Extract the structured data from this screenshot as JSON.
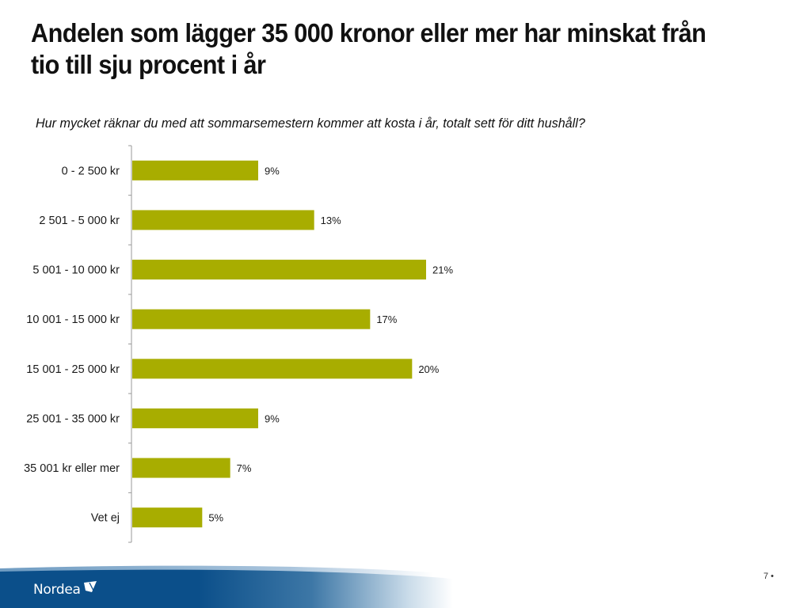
{
  "slide": {
    "title": "Andelen som lägger 35 000 kronor eller mer har minskat från tio till sju procent i år",
    "subtitle": "Hur mycket räknar du med att sommarsemestern kommer att kosta i år, totalt sett för ditt hushåll?",
    "page_number": "7 •",
    "logo_text": "Nordea",
    "colors": {
      "bar": "#a8ad00",
      "footer_blue": "#0b4f8a",
      "axis": "#999999"
    }
  },
  "chart_data": {
    "type": "bar",
    "orientation": "horizontal",
    "title": "Hur mycket räknar du med att sommarsemestern kommer att kosta i år, totalt sett för ditt hushåll?",
    "xlabel": "",
    "ylabel": "",
    "categories": [
      "0 - 2 500 kr",
      "2 501 - 5 000 kr",
      "5 001 - 10 000 kr",
      "10 001 - 15 000 kr",
      "15 001 - 25 000 kr",
      "25 001 - 35 000 kr",
      "35 001 kr eller mer",
      "Vet ej"
    ],
    "values": [
      9,
      13,
      21,
      17,
      20,
      9,
      7,
      5
    ],
    "data_labels": [
      "9%",
      "13%",
      "21%",
      "17%",
      "20%",
      "9%",
      "7%",
      "5%"
    ],
    "unit": "%",
    "xlim": [
      0,
      25
    ],
    "grid": false,
    "legend": "none"
  }
}
